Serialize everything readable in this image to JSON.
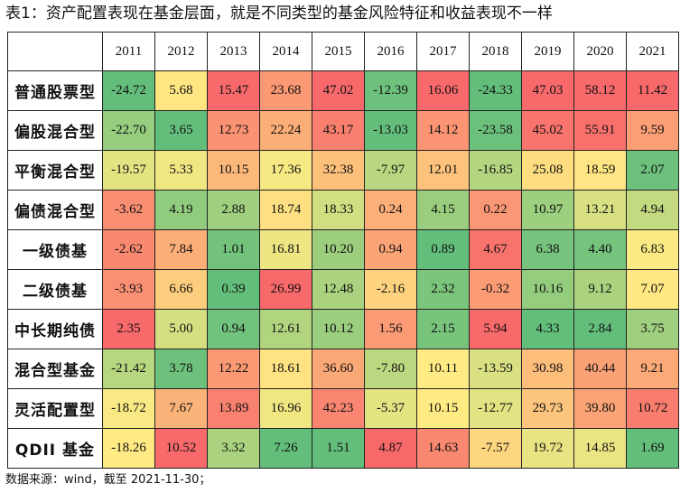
{
  "title": "表1：资产配置表现在基金层面，就是不同类型的基金风险特征和收益表现不一样",
  "source": "数据来源：wind，截至 2021-11-30；",
  "colors": {
    "high": "#f8696b",
    "mid": "#ffeb84",
    "low": "#63be7b"
  },
  "chart_data": {
    "type": "heatmap",
    "title": "表1：资产配置表现在基金层面，就是不同类型的基金风险特征和收益表现不一样",
    "columns": [
      "2011",
      "2012",
      "2013",
      "2014",
      "2015",
      "2016",
      "2017",
      "2018",
      "2019",
      "2020",
      "2021"
    ],
    "rows": [
      "普通股票型",
      "偏股混合型",
      "平衡混合型",
      "偏债混合型",
      "一级债基",
      "二级债基",
      "中长期纯债",
      "混合型基金",
      "灵活配置型",
      "QDII 基金"
    ],
    "values": [
      [
        "-24.72",
        "5.68",
        "15.47",
        "23.68",
        "47.02",
        "-12.39",
        "16.06",
        "-24.33",
        "47.03",
        "58.12",
        "11.42"
      ],
      [
        "-22.70",
        "3.65",
        "12.73",
        "22.24",
        "43.17",
        "-13.03",
        "14.12",
        "-23.58",
        "45.02",
        "55.91",
        "9.59"
      ],
      [
        "-19.57",
        "5.33",
        "10.15",
        "17.36",
        "32.38",
        "-7.97",
        "12.01",
        "-16.85",
        "25.08",
        "18.59",
        "2.07"
      ],
      [
        "-3.62",
        "4.19",
        "2.88",
        "18.74",
        "18.33",
        "0.24",
        "4.15",
        "0.22",
        "10.97",
        "13.21",
        "4.94"
      ],
      [
        "-2.62",
        "7.84",
        "1.01",
        "16.81",
        "10.20",
        "0.94",
        "0.89",
        "4.67",
        "6.38",
        "4.40",
        "6.83"
      ],
      [
        "-3.93",
        "6.66",
        "0.39",
        "26.99",
        "12.48",
        "-2.16",
        "2.32",
        "-0.32",
        "10.16",
        "9.12",
        "7.07"
      ],
      [
        "2.35",
        "5.00",
        "0.94",
        "12.61",
        "10.12",
        "1.56",
        "2.15",
        "5.94",
        "4.33",
        "2.84",
        "3.75"
      ],
      [
        "-21.42",
        "3.78",
        "12.22",
        "18.61",
        "36.60",
        "-7.80",
        "10.11",
        "-13.59",
        "30.98",
        "40.44",
        "9.21"
      ],
      [
        "-18.72",
        "7.67",
        "13.89",
        "16.96",
        "42.23",
        "-5.37",
        "10.15",
        "-12.77",
        "29.73",
        "39.80",
        "10.72"
      ],
      [
        "-18.26",
        "10.52",
        "3.32",
        "7.26",
        "1.51",
        "4.87",
        "14.63",
        "-7.57",
        "19.72",
        "14.85",
        "1.69"
      ]
    ],
    "color_scale": "per-column: high=red, mid=yellow, low=green"
  }
}
